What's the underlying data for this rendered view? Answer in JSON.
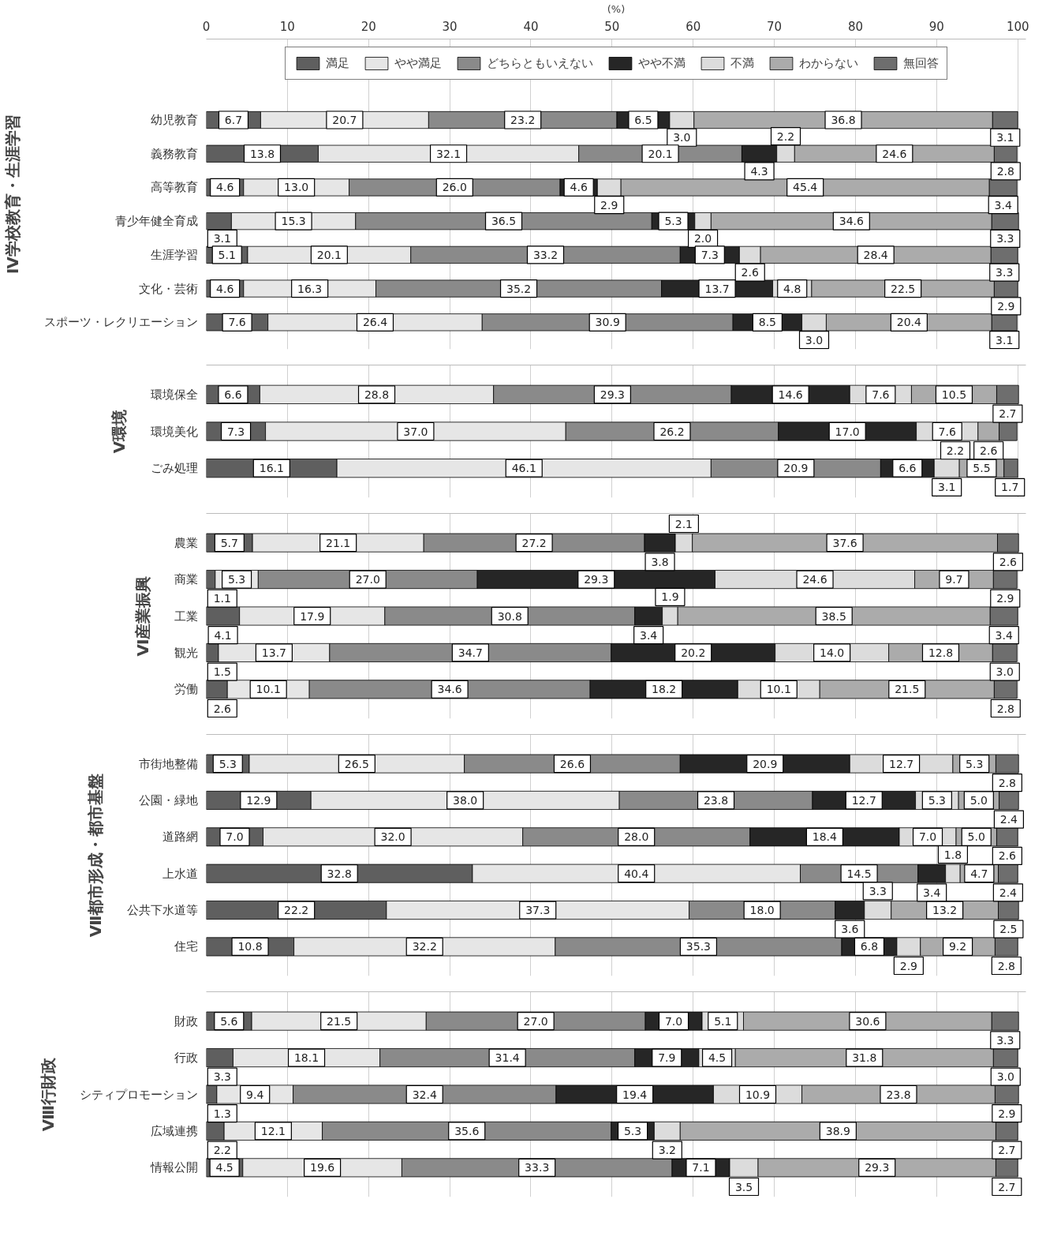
{
  "chart_data": [
    {
      "type": "bar",
      "orientation": "horizontal",
      "stacked": true,
      "grid": "x",
      "legend": "top",
      "xlabel": "(%)",
      "ylabel": "Ⅳ学校教育・生涯学習",
      "xlim": [
        0,
        101
      ],
      "xticks": [
        0,
        10,
        20,
        30,
        40,
        50,
        60,
        70,
        80,
        90,
        100
      ],
      "categories": [
        "幼児教育",
        "義務教育",
        "高等教育",
        "青少年健全育成",
        "生涯学習",
        "文化・芸術",
        "スポーツ・レクリエーション"
      ],
      "series": [
        {
          "name": "満足",
          "color": "#5f5f5f",
          "values": [
            6.7,
            13.8,
            4.6,
            3.1,
            5.1,
            4.6,
            7.6
          ],
          "value_labels": [
            "6.7",
            "13.8",
            "4.6",
            "3.1",
            "5.1",
            "4.6",
            "7.6"
          ]
        },
        {
          "name": "やや満足",
          "color": "#e6e6e6",
          "values": [
            20.7,
            32.1,
            13.0,
            15.3,
            20.1,
            16.3,
            26.4
          ],
          "value_labels": [
            "20.7",
            "32.1",
            "13.0",
            "15.3",
            "20.1",
            "16.3",
            "26.4"
          ]
        },
        {
          "name": "どちらともいえない",
          "color": "#8a8a8a",
          "values": [
            23.2,
            20.1,
            26.0,
            36.5,
            33.2,
            35.2,
            30.9
          ],
          "value_labels": [
            "23.2",
            "20.1",
            "26.0",
            "36.5",
            "33.2",
            "35.2",
            "30.9"
          ]
        },
        {
          "name": "やや不満",
          "color": "#262626",
          "values": [
            6.5,
            4.3,
            4.6,
            5.3,
            7.3,
            13.7,
            8.5
          ],
          "value_labels": [
            "6.5",
            "4.3",
            "4.6",
            "5.3",
            "7.3",
            "13.7",
            "8.5"
          ]
        },
        {
          "name": "不満",
          "color": "#dcdcdc",
          "values": [
            3.0,
            2.2,
            2.9,
            2.0,
            2.6,
            4.8,
            3.0
          ],
          "value_labels": [
            "3.0",
            "2.2",
            "2.9",
            "2.0",
            "2.6",
            "4.8",
            "3.0"
          ]
        },
        {
          "name": "わからない",
          "color": "#ababab",
          "values": [
            36.8,
            24.6,
            45.4,
            34.6,
            28.4,
            22.5,
            20.4
          ],
          "value_labels": [
            "36.8",
            "24.6",
            "45.4",
            "34.6",
            "28.4",
            "22.5",
            "20.4"
          ]
        },
        {
          "name": "無回答",
          "color": "#6e6e6e",
          "values": [
            3.1,
            2.8,
            3.4,
            3.3,
            3.3,
            2.9,
            3.1
          ],
          "value_labels": [
            "3.1",
            "2.8",
            "3.4",
            "3.3",
            "3.3",
            "2.9",
            "3.1"
          ]
        }
      ]
    },
    {
      "type": "bar",
      "orientation": "horizontal",
      "stacked": true,
      "grid": "x",
      "tick_labels": "y",
      "ylabel": "Ⅴ環境",
      "xlim": [
        0,
        101
      ],
      "xticks": [
        0,
        10,
        20,
        30,
        40,
        50,
        60,
        70,
        80,
        90,
        100
      ],
      "categories": [
        "環境保全",
        "環境美化",
        "ごみ処理"
      ],
      "series": [
        {
          "color": "#5f5f5f",
          "values": [
            6.6,
            7.3,
            16.1
          ],
          "value_labels": [
            "6.6",
            "7.3",
            "16.1"
          ]
        },
        {
          "color": "#e6e6e6",
          "values": [
            28.8,
            37.0,
            46.1
          ],
          "value_labels": [
            "28.8",
            "37.0",
            "46.1"
          ]
        },
        {
          "color": "#8a8a8a",
          "values": [
            29.3,
            26.2,
            20.9
          ],
          "value_labels": [
            "29.3",
            "26.2",
            "20.9"
          ]
        },
        {
          "color": "#262626",
          "values": [
            14.6,
            17.0,
            6.6
          ],
          "value_labels": [
            "14.6",
            "17.0",
            "6.6"
          ]
        },
        {
          "color": "#dcdcdc",
          "values": [
            7.6,
            7.6,
            3.1
          ],
          "value_labels": [
            "7.6",
            "7.6",
            "3.1"
          ]
        },
        {
          "color": "#ababab",
          "values": [
            10.5,
            2.6,
            5.5
          ],
          "value_labels": [
            "10.5",
            "2.6",
            "5.5"
          ]
        },
        {
          "color": "#6e6e6e",
          "values": [
            2.7,
            2.2,
            1.7
          ],
          "value_labels": [
            "2.7",
            "2.2",
            "1.7"
          ]
        }
      ]
    },
    {
      "type": "bar",
      "orientation": "horizontal",
      "stacked": true,
      "grid": "x",
      "tick_labels": "y",
      "ylabel": "Ⅵ産業振興",
      "xlim": [
        0,
        101
      ],
      "xticks": [
        0,
        10,
        20,
        30,
        40,
        50,
        60,
        70,
        80,
        90,
        100
      ],
      "categories": [
        "農業",
        "商業",
        "工業",
        "観光",
        "労働"
      ],
      "series": [
        {
          "color": "#5f5f5f",
          "values": [
            5.7,
            1.1,
            4.1,
            1.5,
            2.6
          ],
          "value_labels": [
            "5.7",
            "1.1",
            "4.1",
            "1.5",
            "2.6"
          ]
        },
        {
          "color": "#e6e6e6",
          "values": [
            21.1,
            5.3,
            17.9,
            13.7,
            10.1
          ],
          "value_labels": [
            "21.1",
            "5.3",
            "17.9",
            "13.7",
            "10.1"
          ]
        },
        {
          "color": "#8a8a8a",
          "values": [
            27.2,
            27.0,
            30.8,
            34.7,
            34.6
          ],
          "value_labels": [
            "27.2",
            "27.0",
            "30.8",
            "34.7",
            "34.6"
          ]
        },
        {
          "color": "#262626",
          "values": [
            3.8,
            29.3,
            3.4,
            20.2,
            18.2
          ],
          "value_labels": [
            "3.8",
            "29.3",
            "3.4",
            "20.2",
            "18.2"
          ]
        },
        {
          "color": "#dcdcdc",
          "values": [
            2.1,
            24.6,
            1.9,
            14.0,
            10.1
          ],
          "value_labels": [
            "2.1",
            "24.6",
            "1.9",
            "14.0",
            "10.1"
          ]
        },
        {
          "color": "#ababab",
          "values": [
            37.6,
            9.7,
            38.5,
            12.8,
            21.5
          ],
          "value_labels": [
            "37.6",
            "9.7",
            "38.5",
            "12.8",
            "21.5"
          ]
        },
        {
          "color": "#6e6e6e",
          "values": [
            2.6,
            2.9,
            3.4,
            3.0,
            2.8
          ],
          "value_labels": [
            "2.6",
            "2.9",
            "3.4",
            "3.0",
            "2.8"
          ]
        }
      ]
    },
    {
      "type": "bar",
      "orientation": "horizontal",
      "stacked": true,
      "grid": "x",
      "tick_labels": "y",
      "ylabel": "Ⅶ都市形成・都市基盤",
      "xlim": [
        0,
        101
      ],
      "xticks": [
        0,
        10,
        20,
        30,
        40,
        50,
        60,
        70,
        80,
        90,
        100
      ],
      "categories": [
        "市街地整備",
        "公園・緑地",
        "道路網",
        "上水道",
        "公共下水道等",
        "住宅"
      ],
      "series": [
        {
          "color": "#5f5f5f",
          "values": [
            5.3,
            12.9,
            7.0,
            32.8,
            22.2,
            10.8
          ],
          "value_labels": [
            "5.3",
            "12.9",
            "7.0",
            "32.8",
            "22.2",
            "10.8"
          ]
        },
        {
          "color": "#e6e6e6",
          "values": [
            26.5,
            38.0,
            32.0,
            40.4,
            37.3,
            32.2
          ],
          "value_labels": [
            "26.5",
            "38.0",
            "32.0",
            "40.4",
            "37.3",
            "32.2"
          ]
        },
        {
          "color": "#8a8a8a",
          "values": [
            26.6,
            23.8,
            28.0,
            14.5,
            18.0,
            35.3
          ],
          "value_labels": [
            "26.6",
            "23.8",
            "28.0",
            "14.5",
            "18.0",
            "35.3"
          ]
        },
        {
          "color": "#262626",
          "values": [
            20.9,
            12.7,
            18.4,
            3.4,
            3.6,
            6.8
          ],
          "value_labels": [
            "20.9",
            "12.7",
            "18.4",
            "3.4",
            "3.6",
            "6.8"
          ]
        },
        {
          "color": "#dcdcdc",
          "values": [
            12.7,
            5.3,
            7.0,
            1.8,
            3.3,
            2.9
          ],
          "value_labels": [
            "12.7",
            "5.3",
            "7.0",
            "1.8",
            "3.3",
            "2.9"
          ]
        },
        {
          "color": "#ababab",
          "values": [
            5.3,
            5.0,
            5.0,
            4.7,
            13.2,
            9.2
          ],
          "value_labels": [
            "5.3",
            "5.0",
            "5.0",
            "4.7",
            "13.2",
            "9.2"
          ]
        },
        {
          "color": "#6e6e6e",
          "values": [
            2.8,
            2.4,
            2.6,
            2.4,
            2.5,
            2.8
          ],
          "value_labels": [
            "2.8",
            "2.4",
            "2.6",
            "2.4",
            "2.5",
            "2.8"
          ]
        }
      ]
    },
    {
      "type": "bar",
      "orientation": "horizontal",
      "stacked": true,
      "grid": "x",
      "tick_labels": "y",
      "ylabel": "Ⅷ行財政",
      "xlim": [
        0,
        101
      ],
      "xticks": [
        0,
        10,
        20,
        30,
        40,
        50,
        60,
        70,
        80,
        90,
        100
      ],
      "categories": [
        "財政",
        "行政",
        "シティプロモーション",
        "広域連携",
        "情報公開"
      ],
      "series": [
        {
          "color": "#5f5f5f",
          "values": [
            5.6,
            3.3,
            1.3,
            2.2,
            4.5
          ],
          "value_labels": [
            "5.6",
            "3.3",
            "1.3",
            "2.2",
            "4.5"
          ]
        },
        {
          "color": "#e6e6e6",
          "values": [
            21.5,
            18.1,
            9.4,
            12.1,
            19.6
          ],
          "value_labels": [
            "21.5",
            "18.1",
            "9.4",
            "12.1",
            "19.6"
          ]
        },
        {
          "color": "#8a8a8a",
          "values": [
            27.0,
            31.4,
            32.4,
            35.6,
            33.3
          ],
          "value_labels": [
            "27.0",
            "31.4",
            "32.4",
            "35.6",
            "33.3"
          ]
        },
        {
          "color": "#262626",
          "values": [
            7.0,
            7.9,
            19.4,
            5.3,
            7.1
          ],
          "value_labels": [
            "7.0",
            "7.9",
            "19.4",
            "5.3",
            "7.1"
          ]
        },
        {
          "color": "#dcdcdc",
          "values": [
            5.1,
            4.5,
            10.9,
            3.2,
            3.5
          ],
          "value_labels": [
            "5.1",
            "4.5",
            "10.9",
            "3.2",
            "3.5"
          ]
        },
        {
          "color": "#ababab",
          "values": [
            30.6,
            31.8,
            23.8,
            38.9,
            29.3
          ],
          "value_labels": [
            "30.6",
            "31.8",
            "23.8",
            "38.9",
            "29.3"
          ]
        },
        {
          "color": "#6e6e6e",
          "values": [
            3.3,
            3.0,
            2.9,
            2.7,
            2.7
          ],
          "value_labels": [
            "3.3",
            "3.0",
            "2.9",
            "2.7",
            "2.7"
          ]
        }
      ]
    }
  ]
}
